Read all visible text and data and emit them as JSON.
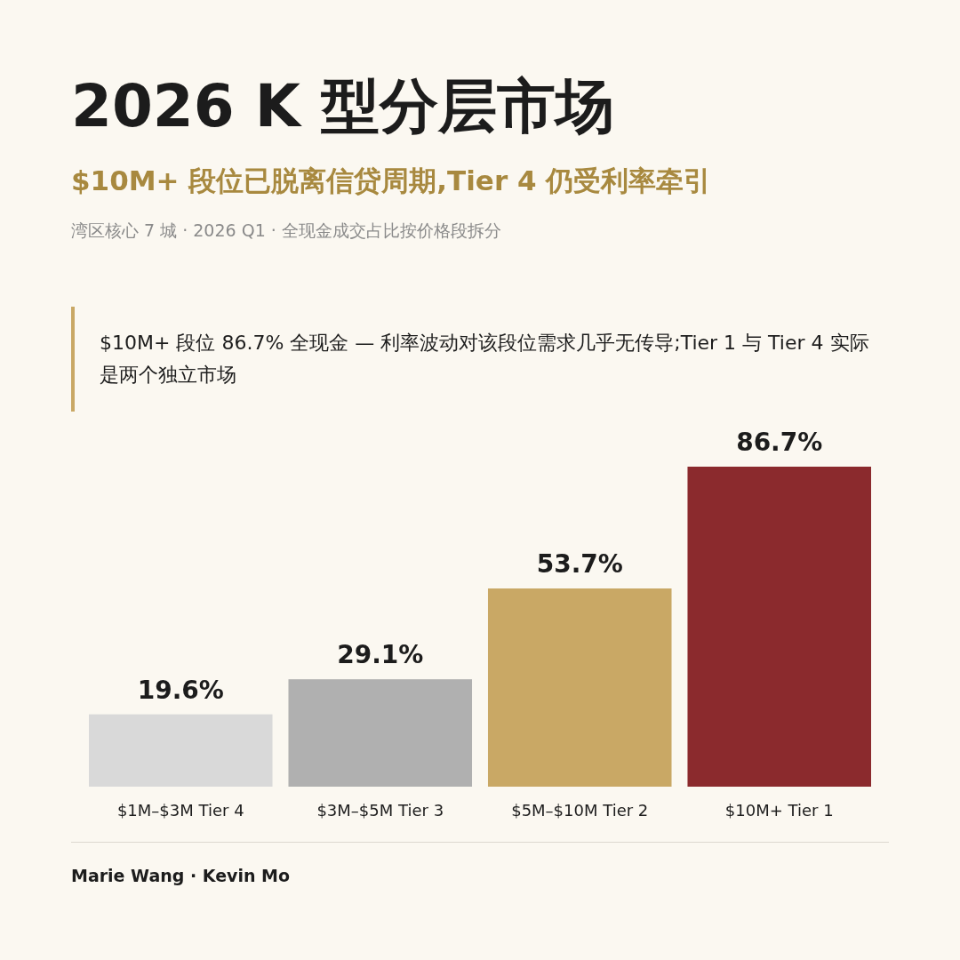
{
  "chart_data": {
    "type": "bar",
    "title": "2026 K 型分层市场",
    "subtitle": "$10M+ 段位已脱离信贷周期,Tier 4 仍受利率牵引",
    "annotations": [
      "湾区核心 7 城 · 2026 Q1 · 全现金成交占比按价格段拆分",
      "$10M+ 段位 86.7% 全现金 — 利率波动对该段位需求几乎无传导;Tier 1 与 Tier 4 实际是两个独立市场",
      "Marie Wang · Kevin Mo"
    ],
    "categories": [
      "$1M–$3M Tier 4",
      "$3M–$5M Tier 3",
      "$5M–$10M Tier 2",
      "$10M+ Tier 1"
    ],
    "values": [
      19.6,
      29.1,
      53.7,
      86.7
    ],
    "colors": [
      "#d9d9d9",
      "#b0b0b0",
      "#c9a865",
      "#8b2a2d"
    ],
    "value_labels": [
      "19.6%",
      "29.1%",
      "53.7%",
      "86.7%"
    ]
  }
}
